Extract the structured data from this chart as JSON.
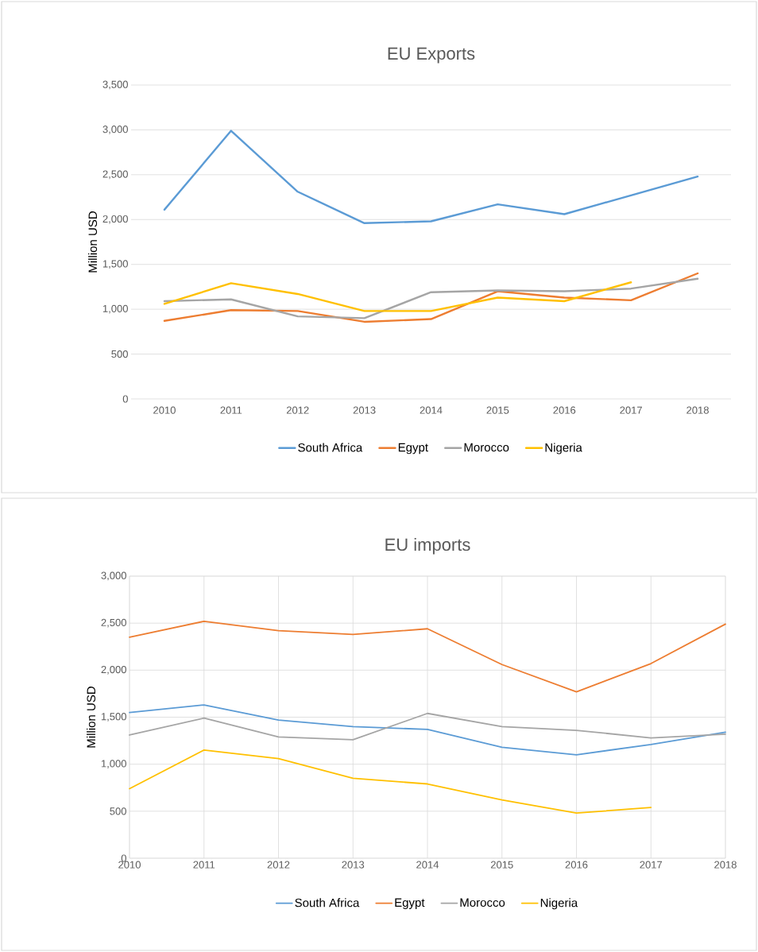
{
  "chart_data": [
    {
      "type": "line",
      "title": "EU Exports",
      "ylabel": "Million USD",
      "categories": [
        "2010",
        "2011",
        "2012",
        "2013",
        "2014",
        "2015",
        "2016",
        "2017",
        "2018"
      ],
      "series": [
        {
          "name": "South Africa",
          "color": "#5b9bd5",
          "values": [
            2110,
            2990,
            2310,
            1960,
            1980,
            2170,
            2060,
            2270,
            2480
          ]
        },
        {
          "name": "Egypt",
          "color": "#ed7d31",
          "values": [
            870,
            990,
            980,
            860,
            890,
            1200,
            1130,
            1100,
            1400
          ]
        },
        {
          "name": "Morocco",
          "color": "#a5a5a5",
          "values": [
            1090,
            1110,
            920,
            900,
            1190,
            1210,
            1200,
            1230,
            1340
          ]
        },
        {
          "name": "Nigeria",
          "color": "#ffc000",
          "values": [
            1060,
            1290,
            1170,
            980,
            980,
            1130,
            1090,
            1300,
            null
          ]
        }
      ],
      "ylim": [
        0,
        3500
      ],
      "yticks": [
        0,
        500,
        {
          "value": 1000,
          "label": "1,000"
        },
        {
          "value": 1500,
          "label": "1,500"
        },
        {
          "value": 2000,
          "label": "2,000"
        },
        {
          "value": 2500,
          "label": "2,500"
        },
        {
          "value": 3000,
          "label": "3,000"
        },
        {
          "value": 3500,
          "label": "3,500"
        }
      ],
      "grid": "y",
      "legend": "bottom"
    },
    {
      "type": "line",
      "title": "EU imports",
      "ylabel": "Million USD",
      "x": [
        2010,
        2011,
        2012,
        2013,
        2014,
        2015,
        2016,
        2017,
        2018
      ],
      "series": [
        {
          "name": "South Africa",
          "color": "#5b9bd5",
          "values": [
            1550,
            1630,
            1470,
            1400,
            1370,
            1180,
            1100,
            1210,
            1340
          ]
        },
        {
          "name": "Egypt",
          "color": "#ed7d31",
          "values": [
            2350,
            2520,
            2420,
            2380,
            2440,
            2060,
            1770,
            2070,
            2490
          ]
        },
        {
          "name": "Morocco",
          "color": "#a5a5a5",
          "values": [
            1310,
            1490,
            1290,
            1260,
            1540,
            1400,
            1360,
            1280,
            1320
          ]
        },
        {
          "name": "Nigeria",
          "color": "#ffc000",
          "values": [
            740,
            1150,
            1060,
            850,
            790,
            620,
            480,
            540,
            null
          ]
        }
      ],
      "xlim": [
        2010,
        2018
      ],
      "xticks": [
        2010,
        2011,
        2012,
        2013,
        2014,
        2015,
        2016,
        2017,
        2018
      ],
      "ylim": [
        0,
        3000
      ],
      "yticks": [
        0,
        500,
        {
          "value": 1000,
          "label": "1,000"
        },
        {
          "value": 1500,
          "label": "1,500"
        },
        {
          "value": 2000,
          "label": "2,000"
        },
        {
          "value": 2500,
          "label": "2,500"
        },
        {
          "value": 3000,
          "label": "3,000"
        }
      ],
      "grid": true,
      "legend": "bottom"
    }
  ]
}
